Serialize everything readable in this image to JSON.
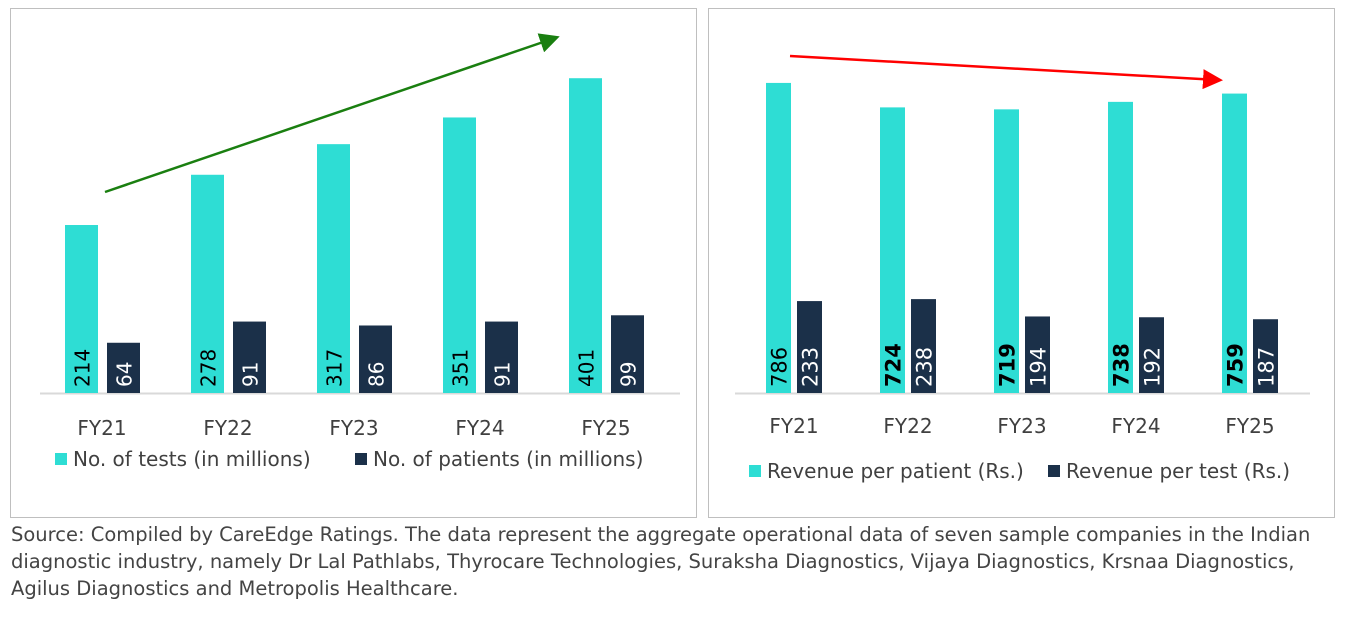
{
  "chart_data": [
    {
      "type": "bar",
      "categories": [
        "FY21",
        "FY22",
        "FY23",
        "FY24",
        "FY25"
      ],
      "series": [
        {
          "name": "No. of tests (in millions)",
          "values": [
            214,
            278,
            317,
            351,
            401
          ],
          "color": "#2EDDD4"
        },
        {
          "name": "No. of patients (in millions)",
          "values": [
            64,
            91,
            86,
            91,
            99
          ],
          "color": "#1B3049"
        }
      ],
      "label_bold": [
        [
          false,
          false,
          false,
          false,
          false
        ],
        [
          false,
          false,
          false,
          false,
          false
        ]
      ],
      "trend_arrow_color": "#1A7F10",
      "legend": "bottom",
      "ylim": [
        0,
        430
      ]
    },
    {
      "type": "bar",
      "categories": [
        "FY21",
        "FY22",
        "FY23",
        "FY24",
        "FY25"
      ],
      "series": [
        {
          "name": "Revenue per patient (Rs.)",
          "values": [
            786,
            724,
            719,
            738,
            759
          ],
          "color": "#2EDDD4"
        },
        {
          "name": "Revenue per test (Rs.)",
          "values": [
            233,
            238,
            194,
            192,
            187
          ],
          "color": "#1B3049"
        }
      ],
      "label_bold": [
        [
          false,
          true,
          true,
          true,
          true
        ],
        [
          false,
          false,
          false,
          false,
          false
        ]
      ],
      "trend_arrow_color": "#FF0000",
      "legend": "bottom",
      "ylim": [
        0,
        860
      ]
    }
  ],
  "source": "Source: Compiled by CareEdge Ratings. The data represent the aggregate operational data of seven sample companies in the Indian diagnostic industry, namely Dr Lal Pathlabs, Thyrocare Technologies, Suraksha Diagnostics, Vijaya Diagnostics, Krsnaa Diagnostics, Agilus Diagnostics and Metropolis Healthcare."
}
